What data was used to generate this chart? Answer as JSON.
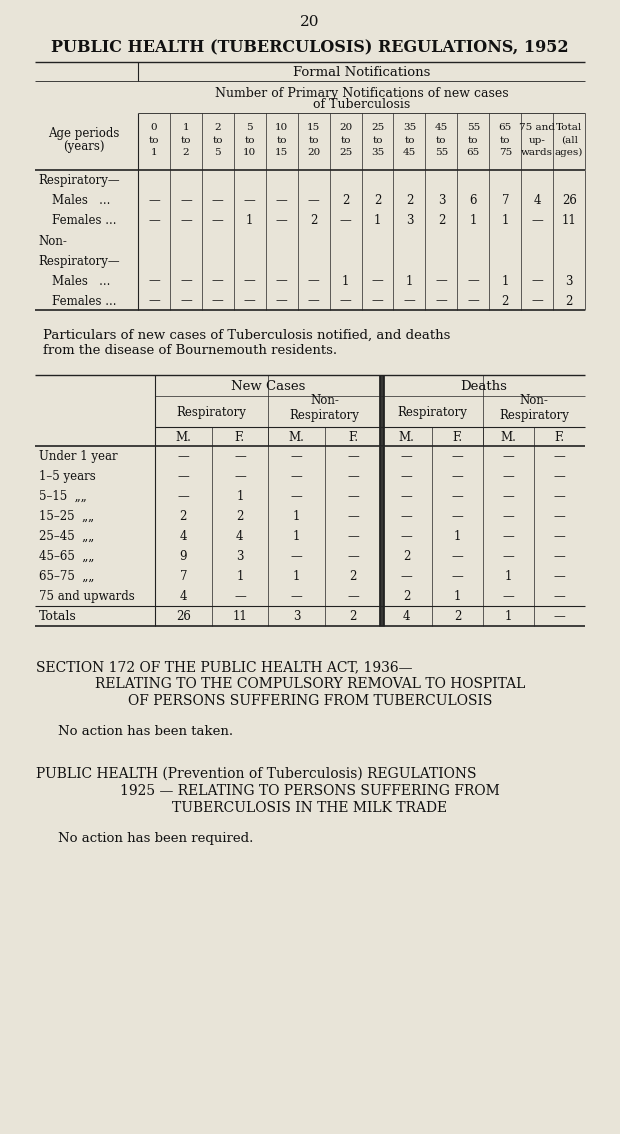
{
  "bg_color": "#e8e4d8",
  "page_number": "20",
  "main_title": "PUBLIC HEALTH (TUBERCULOSIS) REGULATIONS, 1952",
  "table1_header1": "Formal Notifications",
  "table1_header2": "Number of Primary Notifications of new cases\nof Tuberculosis",
  "age_col_subheader": [
    "0\nto\n1",
    "1\nto\n2",
    "2\nto\n5",
    "5\nto\n10",
    "10\nto\n15",
    "15\nto\n20",
    "20\nto\n25",
    "25\nto\n35",
    "35\nto\n45",
    "45\nto\n55",
    "55\nto\n65",
    "65\nto\n75",
    "75 and\nup-\nwards",
    "Total\n(all\nages)"
  ],
  "table1_data": [
    [
      "Respiratory—",
      false,
      [
        "",
        "",
        "",
        "",
        "",
        "",
        "",
        "",
        "",
        "",
        "",
        "",
        "",
        ""
      ]
    ],
    [
      "Males   ...",
      true,
      [
        "—",
        "—",
        "—",
        "—",
        "—",
        "—",
        "2",
        "2",
        "2",
        "3",
        "6",
        "7",
        "4",
        "26"
      ]
    ],
    [
      "Females ...",
      true,
      [
        "—",
        "—",
        "—",
        "1",
        "—",
        "2",
        "—",
        "1",
        "3",
        "2",
        "1",
        "1",
        "—",
        "11"
      ]
    ],
    [
      "Non-",
      false,
      [
        "",
        "",
        "",
        "",
        "",
        "",
        "",
        "",
        "",
        "",
        "",
        "",
        "",
        ""
      ]
    ],
    [
      "Respiratory—",
      false,
      [
        "",
        "",
        "",
        "",
        "",
        "",
        "",
        "",
        "",
        "",
        "",
        "",
        "",
        ""
      ]
    ],
    [
      "Males   ...",
      true,
      [
        "—",
        "—",
        "—",
        "—",
        "—",
        "—",
        "1",
        "—",
        "1",
        "—",
        "—",
        "1",
        "—",
        "3"
      ]
    ],
    [
      "Females ...",
      true,
      [
        "—",
        "—",
        "—",
        "—",
        "—",
        "—",
        "—",
        "—",
        "—",
        "—",
        "—",
        "2",
        "—",
        "2"
      ]
    ]
  ],
  "particulars_text1": "Particulars of new cases of Tuberculosis notified, and deaths",
  "particulars_text2": "from the disease of Bournemouth residents.",
  "table2_rows": [
    {
      "label": "Under 1 year",
      "vals": [
        "—",
        "—",
        "—",
        "—",
        "—",
        "—",
        "—",
        "—"
      ]
    },
    {
      "label": "1–5 years",
      "vals": [
        "—",
        "—",
        "—",
        "—",
        "—",
        "—",
        "—",
        "—"
      ]
    },
    {
      "label": "5–15  „„",
      "vals": [
        "—",
        "1",
        "—",
        "—",
        "—",
        "—",
        "—",
        "—"
      ]
    },
    {
      "label": "15–25  „„",
      "vals": [
        "2",
        "2",
        "1",
        "—",
        "—",
        "—",
        "—",
        "—"
      ]
    },
    {
      "label": "25–45  „„",
      "vals": [
        "4",
        "4",
        "1",
        "—",
        "—",
        "1",
        "—",
        "—"
      ]
    },
    {
      "label": "45–65  „„",
      "vals": [
        "9",
        "3",
        "—",
        "—",
        "2",
        "—",
        "—",
        "—"
      ]
    },
    {
      "label": "65–75  „„",
      "vals": [
        "7",
        "1",
        "1",
        "2",
        "—",
        "—",
        "1",
        "—"
      ]
    },
    {
      "label": "75 and upwards",
      "vals": [
        "4",
        "—",
        "—",
        "—",
        "2",
        "1",
        "—",
        "—"
      ]
    },
    {
      "label": "Totals",
      "vals": [
        "26",
        "11",
        "3",
        "2",
        "4",
        "2",
        "1",
        "—"
      ]
    }
  ],
  "section_lines": [
    "SECTION 172 OF THE PUBLIC HEALTH ACT, 1936—",
    "RELATING TO THE COMPULSORY REMOVAL TO HOSPITAL",
    "OF PERSONS SUFFERING FROM TUBERCULOSIS"
  ],
  "section_body": "No action has been taken.",
  "pub_health_lines": [
    "PUBLIC HEALTH (Prevention of Tuberculosis) REGULATIONS",
    "1925 — RELATING TO PERSONS SUFFERING FROM",
    "TUBERCULOSIS IN THE MILK TRADE"
  ],
  "pub_health_body": "No action has been required."
}
